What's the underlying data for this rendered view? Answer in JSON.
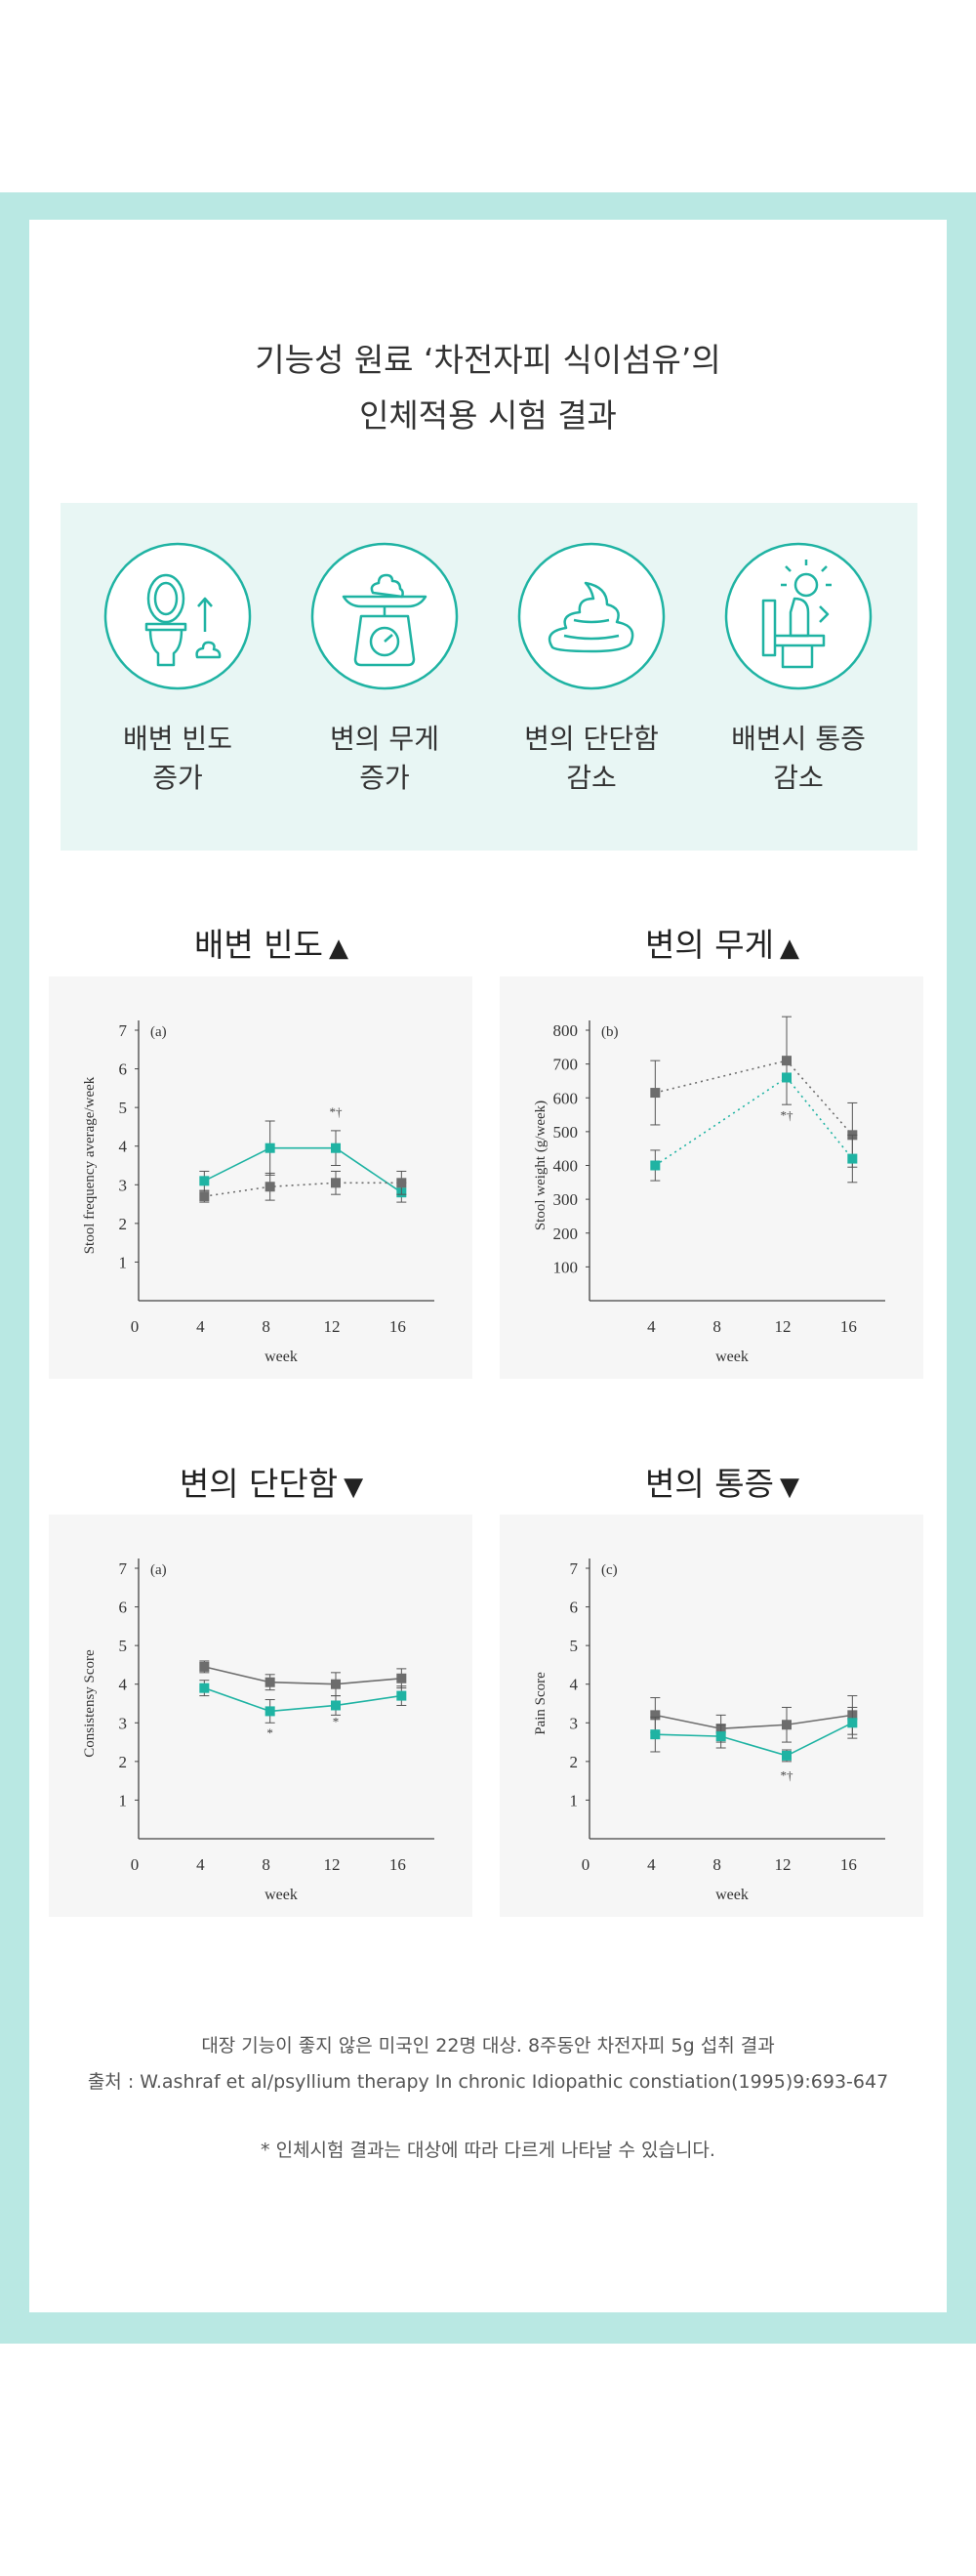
{
  "title_lines": [
    "기능성 원료 ‘차전자피 식이섬유’의",
    "인체적용 시험 결과"
  ],
  "effects": [
    {
      "icon": "toilet-frequency-icon",
      "label": "배변 빈도\n증가"
    },
    {
      "icon": "stool-scale-icon",
      "label": "변의 무게\n증가"
    },
    {
      "icon": "stool-softness-icon",
      "label": "변의 단단함\n감소"
    },
    {
      "icon": "pain-relief-icon",
      "label": "배변시 통증\n감소"
    }
  ],
  "colors": {
    "teal": "#1fb3a3",
    "gray": "#6d6d6d",
    "frame": "#b9e8e3",
    "panel": "#e8f6f4"
  },
  "chart_headings": [
    {
      "text": "배변 빈도",
      "arrow": "▲"
    },
    {
      "text": "변의 무게",
      "arrow": "▲"
    },
    {
      "text": "변의 단단함",
      "arrow": "▼"
    },
    {
      "text": "변의 통증",
      "arrow": "▼"
    }
  ],
  "chart_data": [
    {
      "type": "line",
      "panel": "(a)",
      "xlabel": "week",
      "ylabel": "Stool frequency average/week",
      "xticks": [
        0,
        4,
        8,
        12,
        16
      ],
      "yticks": [
        1,
        2,
        3,
        4,
        5,
        6,
        7
      ],
      "ylim": [
        0,
        7
      ],
      "series": [
        {
          "color": "teal",
          "style": "solid",
          "x": [
            4,
            8,
            12,
            16
          ],
          "y": [
            3.1,
            3.95,
            3.95,
            2.8
          ],
          "err": [
            0.25,
            0.7,
            0.45,
            0.25
          ]
        },
        {
          "color": "gray",
          "style": "dotted",
          "x": [
            4,
            8,
            12,
            16
          ],
          "y": [
            2.7,
            2.95,
            3.05,
            3.05
          ],
          "err": [
            0.15,
            0.35,
            0.3,
            0.3
          ]
        }
      ],
      "annotations": [
        {
          "x": 12,
          "y": 4.9,
          "text": "*†"
        }
      ]
    },
    {
      "type": "line",
      "panel": "(b)",
      "xlabel": "week",
      "ylabel": "Stool weight (g/week)",
      "xticks": [
        4,
        8,
        12,
        16
      ],
      "yticks": [
        100,
        200,
        300,
        400,
        500,
        600,
        700,
        800
      ],
      "ylim": [
        0,
        800
      ],
      "series": [
        {
          "color": "gray",
          "style": "dotted",
          "x": [
            4,
            12,
            16
          ],
          "y": [
            615,
            710,
            490
          ],
          "err": [
            95,
            130,
            95
          ]
        },
        {
          "color": "teal",
          "style": "dotted",
          "x": [
            4,
            12,
            16
          ],
          "y": [
            400,
            660,
            420
          ],
          "err": [
            45,
            0,
            70
          ]
        }
      ],
      "annotations": [
        {
          "x": 12,
          "y": 550,
          "text": "*†"
        }
      ]
    },
    {
      "type": "line",
      "panel": "(a)",
      "xlabel": "week",
      "ylabel": "Consistensy Score",
      "xticks": [
        0,
        4,
        8,
        12,
        16
      ],
      "yticks": [
        1,
        2,
        3,
        4,
        5,
        6,
        7
      ],
      "ylim": [
        0,
        7
      ],
      "series": [
        {
          "color": "gray",
          "style": "solid",
          "x": [
            4,
            8,
            12,
            16
          ],
          "y": [
            4.45,
            4.05,
            4.0,
            4.15
          ],
          "err": [
            0.15,
            0.2,
            0.3,
            0.25
          ]
        },
        {
          "color": "teal",
          "style": "solid",
          "x": [
            4,
            8,
            12,
            16
          ],
          "y": [
            3.9,
            3.3,
            3.45,
            3.7
          ],
          "err": [
            0.2,
            0.3,
            0.25,
            0.25
          ]
        }
      ],
      "annotations": [
        {
          "x": 8,
          "y": 2.75,
          "text": "*"
        },
        {
          "x": 12,
          "y": 3.05,
          "text": "*"
        }
      ]
    },
    {
      "type": "line",
      "panel": "(c)",
      "xlabel": "week",
      "ylabel": "Pain Score",
      "xticks": [
        0,
        4,
        8,
        12,
        16
      ],
      "yticks": [
        1,
        2,
        3,
        4,
        5,
        6,
        7
      ],
      "ylim": [
        0,
        7
      ],
      "series": [
        {
          "color": "gray",
          "style": "solid",
          "x": [
            4,
            8,
            12,
            16
          ],
          "y": [
            3.2,
            2.85,
            2.95,
            3.2
          ],
          "err": [
            0.45,
            0.35,
            0.45,
            0.5
          ]
        },
        {
          "color": "teal",
          "style": "solid",
          "x": [
            4,
            8,
            12,
            16
          ],
          "y": [
            2.7,
            2.65,
            2.15,
            3.0
          ],
          "err": [
            0.45,
            0.3,
            0.15,
            0.4
          ]
        }
      ],
      "annotations": [
        {
          "x": 12,
          "y": 1.65,
          "text": "*†"
        }
      ]
    }
  ],
  "footnote_lines": [
    "대장 기능이 좋지 않은 미국인 22명 대상. 8주동안 차전자피 5g 섭취 결과",
    "출처 : W.ashraf et al/psyllium therapy In chronic Idiopathic constiation(1995)9:693-647"
  ],
  "disclaimer": "* 인체시험 결과는 대상에 따라 다르게 나타날 수 있습니다."
}
